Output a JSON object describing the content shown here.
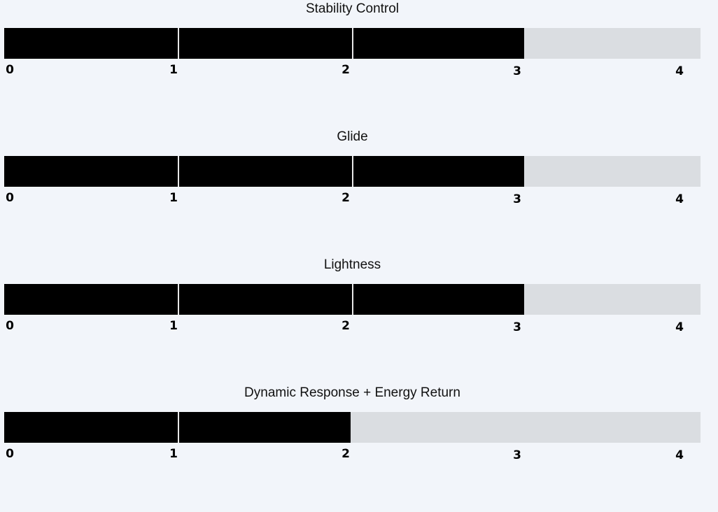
{
  "scale": {
    "min": 0,
    "max": 4,
    "ticks": [
      "0",
      "1",
      "2",
      "3",
      "4"
    ]
  },
  "colors": {
    "fill": "#000000",
    "track": "#dadde1",
    "background": "#f2f5fa"
  },
  "ratings": [
    {
      "label": "Stability Control",
      "value": 3
    },
    {
      "label": "Glide",
      "value": 3
    },
    {
      "label": "Lightness",
      "value": 3
    },
    {
      "label": "Dynamic Response + Energy Return",
      "value": 2
    }
  ]
}
